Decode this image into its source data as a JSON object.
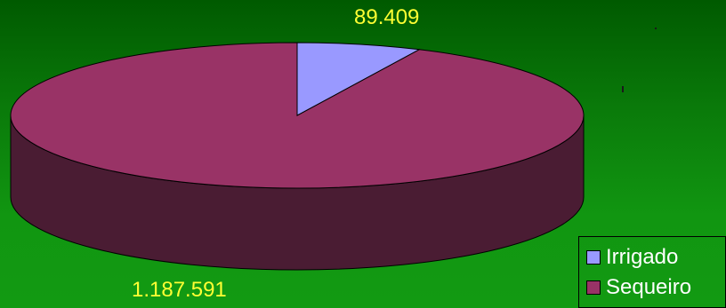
{
  "chart_data": {
    "type": "pie",
    "style": "3d",
    "categories": [
      "Irrigado",
      "Sequeiro"
    ],
    "values": [
      89409,
      1187591
    ],
    "value_labels": [
      "89.409",
      "1.187.591"
    ],
    "title": "",
    "legend": {
      "placement": "bottom-right",
      "entries": [
        "Irrigado",
        "Sequeiro"
      ]
    },
    "colors": {
      "Irrigado": "#9999ff",
      "Sequeiro": "#993366",
      "Sequeiro_side": "#4a1c33"
    }
  }
}
